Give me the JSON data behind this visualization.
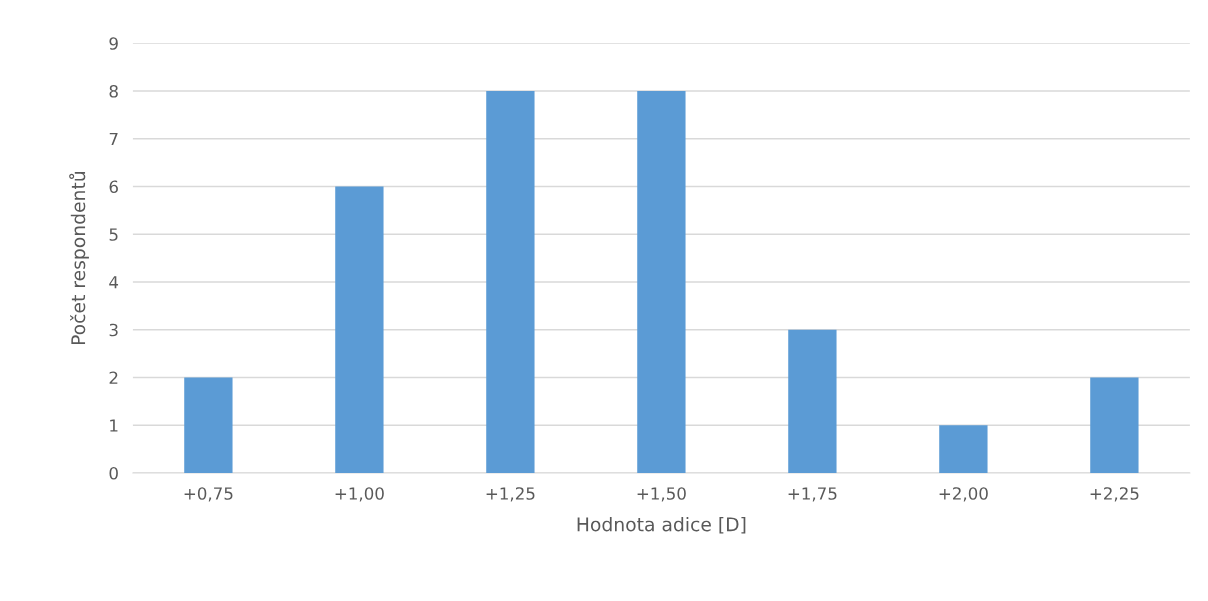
{
  "chart_data": {
    "type": "bar",
    "xlabel": "Hodnota adice [D]",
    "ylabel": "Počet respondentů",
    "categories": [
      "+0,75",
      "+1,00",
      "+1,25",
      "+1,50",
      "+1,75",
      "+2,00",
      "+2,25"
    ],
    "values": [
      2,
      6,
      8,
      8,
      3,
      1,
      2
    ],
    "color": "#5b9bd5",
    "ylim": [
      0,
      9
    ],
    "yticks": [
      0,
      1,
      2,
      3,
      4,
      5,
      6,
      7,
      8,
      9
    ],
    "grid": "y",
    "legend": false
  }
}
